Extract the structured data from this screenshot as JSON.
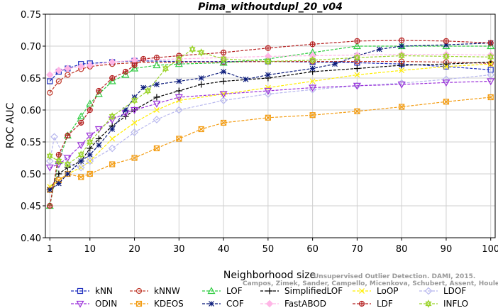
{
  "chart_data": {
    "type": "line",
    "title": "Pima_withoutdupl_20_v04",
    "xlabel": "Neighborhood size",
    "ylabel": "ROC AUC",
    "xlim": [
      0,
      101
    ],
    "ylim": [
      0.4,
      0.75
    ],
    "xticks": [
      "1",
      "10",
      "20",
      "30",
      "40",
      "50",
      "60",
      "70",
      "80",
      "90",
      "100"
    ],
    "xtick_values": [
      1,
      10,
      20,
      30,
      40,
      50,
      60,
      70,
      80,
      90,
      100
    ],
    "yticks": [
      "0.40",
      "0.45",
      "0.50",
      "0.55",
      "0.60",
      "0.65",
      "0.70",
      "0.75"
    ],
    "ytick_values": [
      0.4,
      0.45,
      0.5,
      0.55,
      0.6,
      0.65,
      0.7,
      0.75
    ],
    "grid": true,
    "legend_position": "bottom",
    "watermark": [
      "Unsupervised Outlier Detection. DAMI, 2015.",
      "Campos, Zimek, Sander, Campello, Micenkova, Schubert, Assent, Houle"
    ],
    "series": [
      {
        "name": "kNN",
        "color": "#1f2fbf",
        "marker": "square",
        "line": "dashed",
        "x": [
          1,
          3,
          5,
          8,
          10,
          15,
          20,
          30,
          40,
          50,
          60,
          70,
          80,
          90,
          100
        ],
        "y": [
          0.645,
          0.66,
          0.665,
          0.672,
          0.673,
          0.675,
          0.677,
          0.676,
          0.676,
          0.676,
          0.675,
          0.674,
          0.672,
          0.668,
          0.663
        ]
      },
      {
        "name": "kNNW",
        "color": "#c0392b",
        "marker": "circle",
        "line": "dashed",
        "x": [
          1,
          3,
          5,
          8,
          10,
          15,
          20,
          30,
          40,
          50,
          60,
          70,
          80,
          90,
          100
        ],
        "y": [
          0.627,
          0.645,
          0.655,
          0.664,
          0.668,
          0.672,
          0.674,
          0.675,
          0.675,
          0.676,
          0.676,
          0.676,
          0.676,
          0.675,
          0.673
        ]
      },
      {
        "name": "LOF",
        "color": "#2ecc40",
        "marker": "triangle",
        "line": "dashed",
        "x": [
          1,
          3,
          5,
          8,
          10,
          12,
          15,
          18,
          20,
          25,
          30,
          40,
          50,
          60,
          70,
          80,
          90,
          100
        ],
        "y": [
          0.45,
          0.52,
          0.56,
          0.59,
          0.61,
          0.625,
          0.645,
          0.655,
          0.665,
          0.67,
          0.672,
          0.674,
          0.68,
          0.69,
          0.7,
          0.7,
          0.7,
          0.7
        ]
      },
      {
        "name": "SimplifiedLOF",
        "color": "#000000",
        "marker": "plus",
        "line": "dashed",
        "x": [
          1,
          3,
          5,
          8,
          10,
          12,
          15,
          18,
          20,
          25,
          30,
          35,
          40,
          50,
          60,
          70,
          80,
          90,
          100
        ],
        "y": [
          0.475,
          0.5,
          0.51,
          0.52,
          0.54,
          0.555,
          0.575,
          0.59,
          0.6,
          0.62,
          0.63,
          0.64,
          0.645,
          0.65,
          0.66,
          0.665,
          0.67,
          0.672,
          0.675
        ]
      },
      {
        "name": "LoOP",
        "color": "#ffee00",
        "marker": "x",
        "line": "dashed",
        "x": [
          1,
          3,
          5,
          8,
          10,
          15,
          20,
          25,
          30,
          40,
          50,
          60,
          70,
          80,
          90,
          100
        ],
        "y": [
          0.48,
          0.49,
          0.5,
          0.51,
          0.52,
          0.555,
          0.58,
          0.6,
          0.615,
          0.625,
          0.635,
          0.645,
          0.655,
          0.662,
          0.668,
          0.672
        ]
      },
      {
        "name": "LDOF",
        "color": "#b8b8ee",
        "marker": "diamond",
        "line": "dashed",
        "x": [
          1,
          2,
          5,
          8,
          10,
          15,
          20,
          25,
          30,
          40,
          50,
          60,
          70,
          80,
          90,
          100
        ],
        "y": [
          0.52,
          0.558,
          0.515,
          0.51,
          0.52,
          0.54,
          0.565,
          0.585,
          0.6,
          0.615,
          0.625,
          0.632,
          0.638,
          0.642,
          0.648,
          0.655
        ]
      },
      {
        "name": "ODIN",
        "color": "#9b30d9",
        "marker": "triangle-down",
        "line": "dashed",
        "x": [
          1,
          3,
          5,
          8,
          10,
          12,
          15,
          18,
          20,
          25,
          30,
          40,
          50,
          60,
          70,
          80,
          90,
          100
        ],
        "y": [
          0.51,
          0.515,
          0.525,
          0.545,
          0.56,
          0.57,
          0.585,
          0.595,
          0.6,
          0.61,
          0.62,
          0.625,
          0.63,
          0.635,
          0.638,
          0.64,
          0.643,
          0.645
        ]
      },
      {
        "name": "KDEOS",
        "color": "#f39c12",
        "marker": "square-x",
        "line": "dashed",
        "x": [
          1,
          3,
          5,
          8,
          10,
          15,
          20,
          25,
          30,
          35,
          40,
          50,
          60,
          70,
          80,
          90,
          100
        ],
        "y": [
          0.475,
          0.49,
          0.5,
          0.495,
          0.5,
          0.515,
          0.525,
          0.54,
          0.555,
          0.57,
          0.58,
          0.588,
          0.592,
          0.598,
          0.605,
          0.613,
          0.62
        ]
      },
      {
        "name": "COF",
        "color": "#0a1a7a",
        "marker": "asterisk",
        "line": "dashed",
        "x": [
          1,
          3,
          5,
          8,
          10,
          12,
          15,
          18,
          20,
          22,
          25,
          30,
          35,
          40,
          45,
          50,
          60,
          65,
          70,
          75,
          80,
          90,
          100
        ],
        "y": [
          0.475,
          0.485,
          0.5,
          0.52,
          0.53,
          0.545,
          0.57,
          0.6,
          0.62,
          0.635,
          0.64,
          0.645,
          0.65,
          0.66,
          0.648,
          0.655,
          0.665,
          0.672,
          0.685,
          0.695,
          0.7,
          0.702,
          0.705
        ]
      },
      {
        "name": "FastABOD",
        "color": "#ffb6e6",
        "marker": "diamond-filled",
        "line": "dashed",
        "x": [
          1,
          3,
          5,
          8,
          10,
          15,
          20,
          30,
          40,
          50,
          60,
          70,
          80,
          90,
          100
        ],
        "y": [
          0.655,
          0.662,
          0.665,
          0.668,
          0.67,
          0.675,
          0.678,
          0.68,
          0.682,
          0.684,
          0.685,
          0.686,
          0.687,
          0.687,
          0.686
        ]
      },
      {
        "name": "LDF",
        "color": "#b52020",
        "marker": "circle-plus",
        "line": "dashed",
        "x": [
          1,
          3,
          5,
          8,
          10,
          12,
          15,
          18,
          20,
          22,
          25,
          30,
          40,
          50,
          60,
          70,
          80,
          90,
          100
        ],
        "y": [
          0.45,
          0.53,
          0.56,
          0.58,
          0.6,
          0.63,
          0.65,
          0.66,
          0.67,
          0.68,
          0.682,
          0.685,
          0.69,
          0.697,
          0.703,
          0.708,
          0.709,
          0.708,
          0.705
        ]
      },
      {
        "name": "INFLO",
        "color": "#9bd42c",
        "marker": "star-hex",
        "line": "dashed",
        "x": [
          1,
          3,
          5,
          8,
          10,
          15,
          20,
          23,
          27,
          30,
          33,
          35,
          40,
          50,
          60,
          70,
          80,
          90,
          100
        ],
        "y": [
          0.528,
          0.52,
          0.515,
          0.53,
          0.55,
          0.59,
          0.615,
          0.63,
          0.665,
          0.68,
          0.695,
          0.69,
          0.68,
          0.676,
          0.678,
          0.682,
          0.685,
          0.684,
          0.683
        ]
      }
    ]
  }
}
